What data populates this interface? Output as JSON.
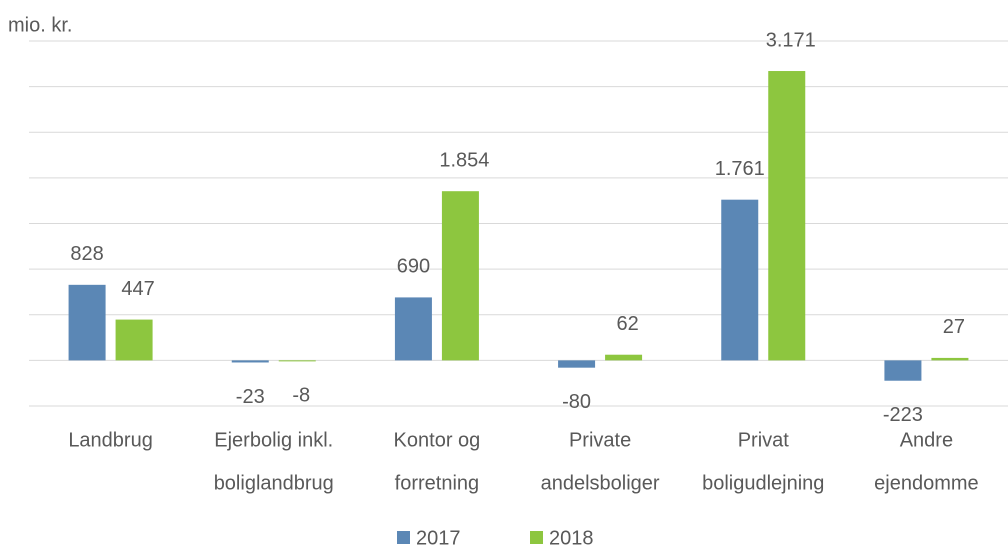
{
  "chart_data": {
    "type": "bar",
    "y_label": "mio. kr.",
    "categories": [
      [
        "Landbrug"
      ],
      [
        "Ejerbolig inkl.",
        "boliglandbrug"
      ],
      [
        "Kontor og",
        "forretning"
      ],
      [
        "Private",
        "andelsboliger"
      ],
      [
        "Privat",
        "boligudlejning"
      ],
      [
        "Andre",
        "ejendomme"
      ]
    ],
    "series": [
      {
        "name": "2017",
        "color": "#5b87b5",
        "values": [
          828,
          -23,
          690,
          -80,
          1761,
          -223
        ],
        "value_labels": [
          "828",
          "-23",
          "690",
          "-80",
          "1.761",
          "-223"
        ]
      },
      {
        "name": "2018",
        "color": "#8dc63f",
        "values": [
          447,
          -8,
          1854,
          62,
          3171,
          27
        ],
        "value_labels": [
          "447",
          "-8",
          "1.854",
          "62",
          "3.171",
          "27"
        ]
      }
    ],
    "ylim": [
      -500,
      3500
    ],
    "yticks": [
      -500,
      0,
      500,
      1000,
      1500,
      2000,
      2500,
      3000,
      3500
    ],
    "grid": true,
    "legend": "bottom"
  }
}
